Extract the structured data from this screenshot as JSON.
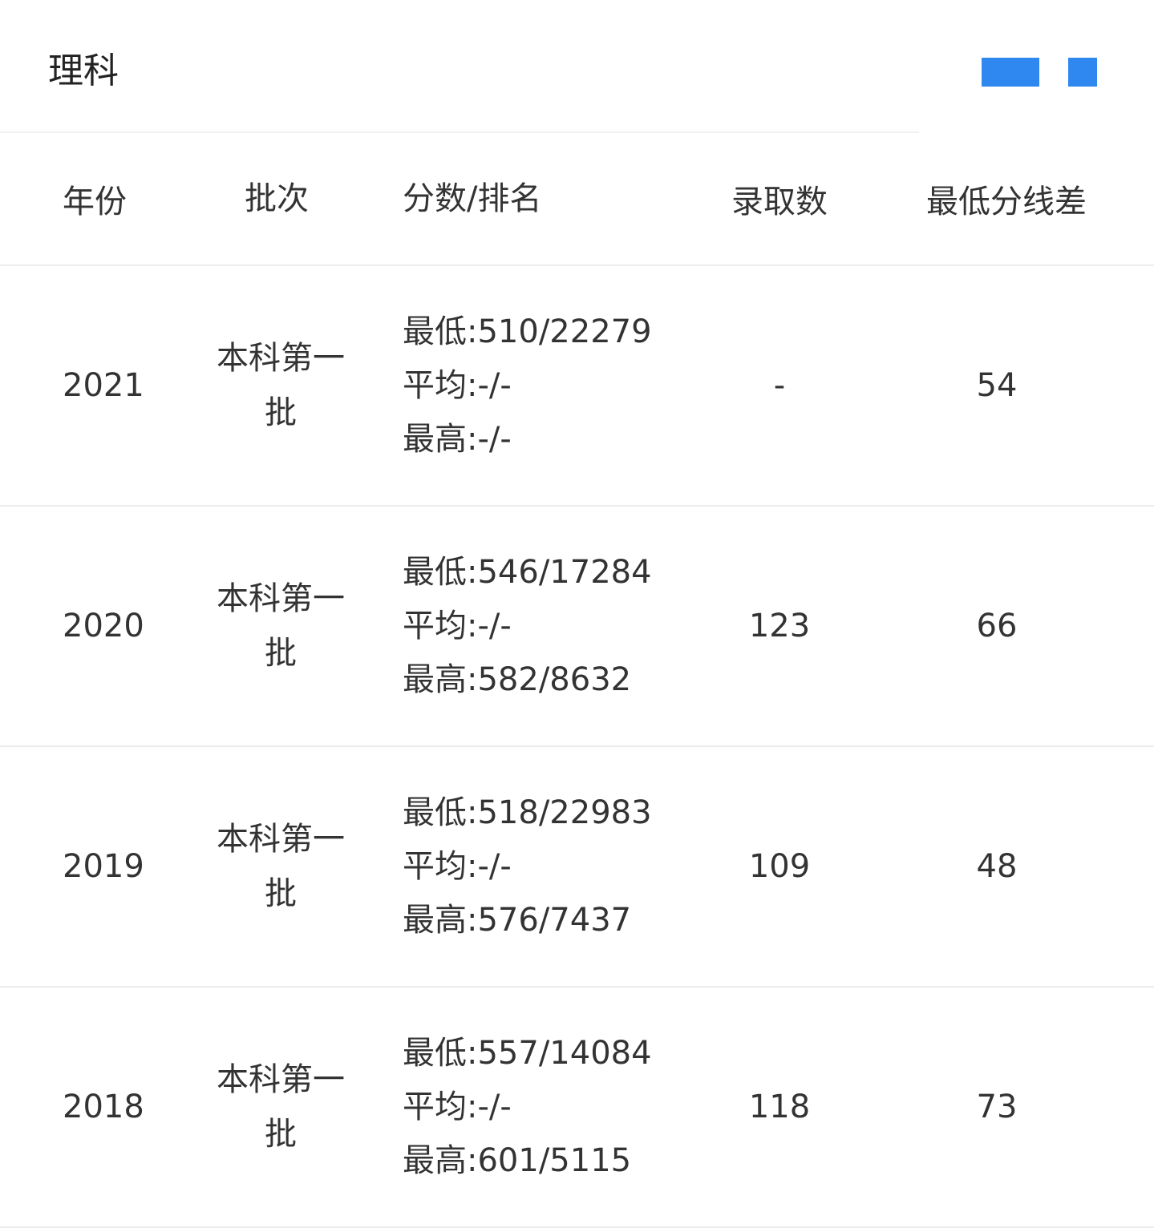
{
  "title": "理科",
  "accent_color": "#2f88f0",
  "headers": [
    "年份",
    "批次",
    "分数/排名",
    "录取数",
    "最低分线差"
  ],
  "rows": [
    {
      "year": "2021",
      "batch": "本科第一批",
      "min": "最低:510/22279",
      "avg": "平均:-/-",
      "max": "最高:-/-",
      "count": "-",
      "diff": "54"
    },
    {
      "year": "2020",
      "batch": "本科第一批",
      "min": "最低:546/17284",
      "avg": "平均:-/-",
      "max": "最高:582/8632",
      "count": "123",
      "diff": "66"
    },
    {
      "year": "2019",
      "batch": "本科第一批",
      "min": "最低:518/22983",
      "avg": "平均:-/-",
      "max": "最高:576/7437",
      "count": "109",
      "diff": "48"
    },
    {
      "year": "2018",
      "batch": "本科第一批",
      "min": "最低:557/14084",
      "avg": "平均:-/-",
      "max": "最高:601/5115",
      "count": "118",
      "diff": "73"
    }
  ]
}
